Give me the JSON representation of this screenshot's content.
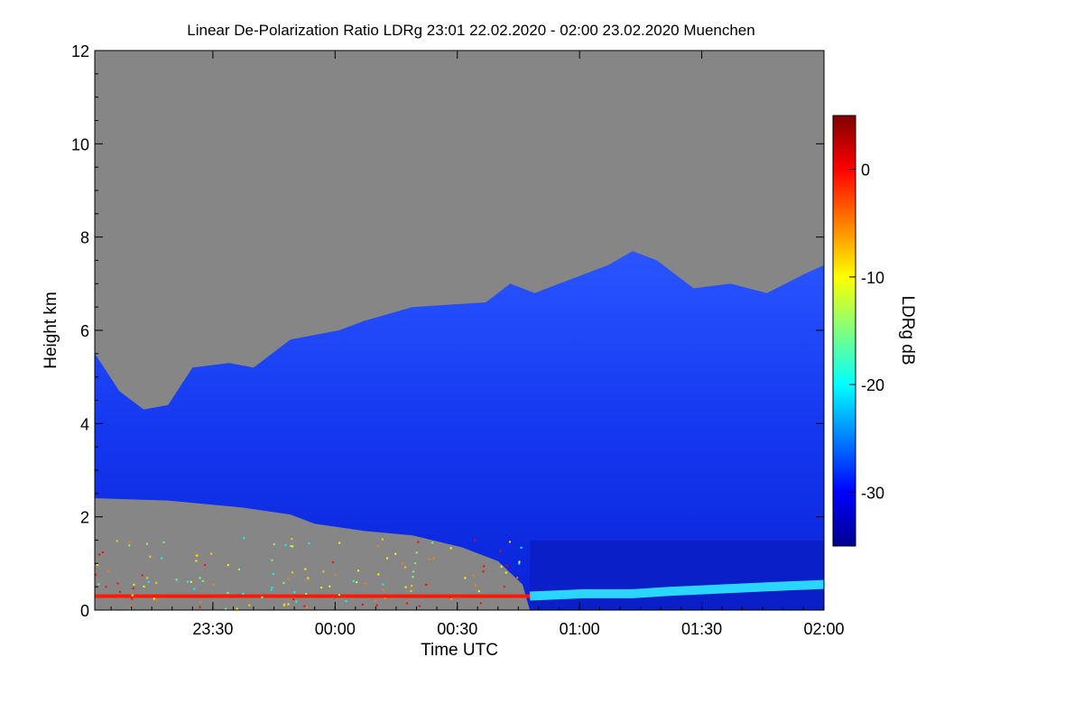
{
  "chart_data": {
    "type": "heatmap",
    "title": "Linear De-Polarization Ratio LDRg   23:01 22.02.2020 - 02:00 23.02.2020 Muenchen",
    "xlabel": "Time UTC",
    "ylabel": "Height km",
    "colorbar_label": "LDRg dB",
    "x_tick_labels": [
      "23:30",
      "00:00",
      "00:30",
      "01:00",
      "01:30",
      "02:00"
    ],
    "x_tick_hours": [
      0.4833,
      0.9833,
      1.4833,
      1.9833,
      2.4833,
      2.9833
    ],
    "xlim_hours": [
      0,
      2.9833
    ],
    "ylim": [
      0,
      12
    ],
    "y_ticks": [
      0,
      2,
      4,
      6,
      8,
      10,
      12
    ],
    "colorbar_ticks": [
      0,
      -10,
      -20,
      -30
    ],
    "colorbar_range": [
      -35,
      5
    ],
    "no_signal_color": "#868686",
    "colormap": [
      "#00008f",
      "#0000ff",
      "#007fff",
      "#00ffff",
      "#7fff7f",
      "#ffff00",
      "#ff7f00",
      "#ff0000",
      "#7f0000"
    ],
    "cloud_top_km": [
      [
        0.0,
        5.5
      ],
      [
        0.1,
        4.7
      ],
      [
        0.2,
        4.3
      ],
      [
        0.3,
        4.4
      ],
      [
        0.4,
        5.2
      ],
      [
        0.55,
        5.3
      ],
      [
        0.65,
        5.2
      ],
      [
        0.8,
        5.8
      ],
      [
        1.0,
        6.0
      ],
      [
        1.1,
        6.2
      ],
      [
        1.3,
        6.5
      ],
      [
        1.6,
        6.6
      ],
      [
        1.7,
        7.0
      ],
      [
        1.8,
        6.8
      ],
      [
        1.9,
        7.0
      ],
      [
        2.0,
        7.2
      ],
      [
        2.1,
        7.4
      ],
      [
        2.2,
        7.7
      ],
      [
        2.3,
        7.5
      ],
      [
        2.45,
        6.9
      ],
      [
        2.6,
        7.0
      ],
      [
        2.75,
        6.8
      ],
      [
        2.9,
        7.2
      ],
      [
        2.9833,
        7.4
      ]
    ],
    "cloud_base_km": [
      [
        0.0,
        2.4
      ],
      [
        0.3,
        2.35
      ],
      [
        0.6,
        2.2
      ],
      [
        0.8,
        2.05
      ],
      [
        0.9,
        1.85
      ],
      [
        1.1,
        1.7
      ],
      [
        1.3,
        1.6
      ],
      [
        1.5,
        1.35
      ],
      [
        1.65,
        1.05
      ],
      [
        1.75,
        0.55
      ],
      [
        1.78,
        0.0
      ],
      [
        2.9833,
        0.0
      ]
    ],
    "low_layer_km": [
      [
        1.78,
        0.3
      ],
      [
        2.0,
        0.35
      ],
      [
        2.2,
        0.35
      ],
      [
        2.35,
        0.4
      ],
      [
        2.55,
        0.45
      ],
      [
        2.75,
        0.5
      ],
      [
        2.9833,
        0.55
      ]
    ],
    "red_line_height_km": 0.3,
    "red_line_end_hours": 1.78
  }
}
